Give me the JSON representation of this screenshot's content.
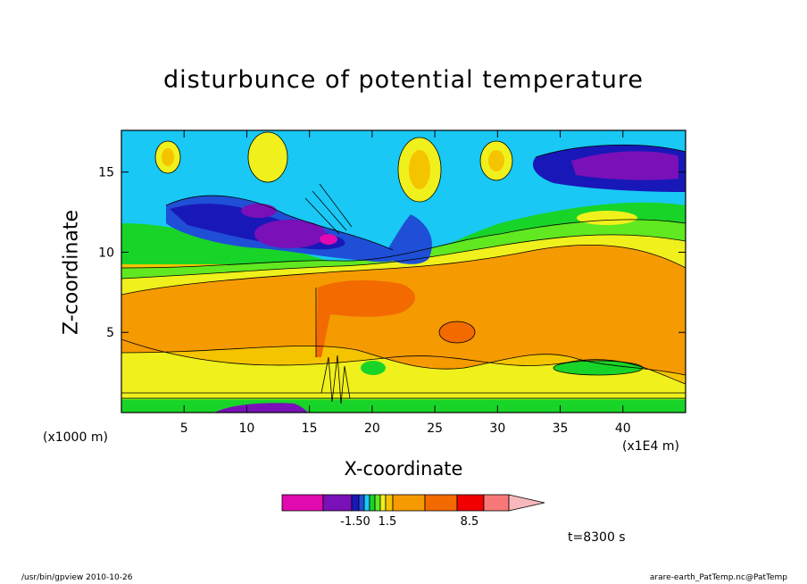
{
  "chart_data": {
    "type": "contour",
    "title": "disturbunce of potential temperature",
    "xlabel": "X-coordinate",
    "ylabel": "Z-coordinate",
    "x_unit_label": "(x1000 m)",
    "x_scale_label": "(x1E4 m)",
    "xlim": [
      0,
      45
    ],
    "ylim": [
      0,
      17.6
    ],
    "x_ticks": [
      5,
      10,
      15,
      20,
      25,
      30,
      35,
      40
    ],
    "y_ticks": [
      5,
      10,
      15
    ],
    "colorbar": {
      "colors": [
        "#e00ab0",
        "#7a10b8",
        "#1818b8",
        "#1f4fd6",
        "#19c8f5",
        "#18d428",
        "#60e820",
        "#f0f01c",
        "#f5c400",
        "#f59a00",
        "#f26a00",
        "#f00000",
        "#f87878",
        "#f7b8bc"
      ],
      "tick_labels": [
        "-1.50",
        "1.5",
        "8.5"
      ],
      "extend": "max"
    },
    "time": "t=8300 s"
  },
  "footer": {
    "left": "/usr/bin/gpview  2010-10-26",
    "right": "arare-earth_PatTemp.nc@PatTemp"
  }
}
